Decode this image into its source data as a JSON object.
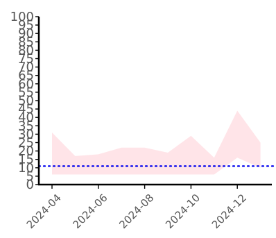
{
  "chart_data": {
    "type": "area",
    "title": "",
    "xlabel": "",
    "ylabel": "",
    "ylim": [
      0,
      100
    ],
    "y_ticks": [
      0,
      5,
      10,
      15,
      20,
      25,
      30,
      35,
      40,
      45,
      50,
      55,
      60,
      65,
      70,
      75,
      80,
      85,
      90,
      95,
      100
    ],
    "x_ticks": [
      "2024-04",
      "2024-06",
      "2024-08",
      "2024-10",
      "2024-12"
    ],
    "x": [
      "2024-04",
      "2024-05",
      "2024-06",
      "2024-07",
      "2024-08",
      "2024-09",
      "2024-10",
      "2024-11",
      "2024-12",
      "2025-01"
    ],
    "band": {
      "lower": [
        6,
        6,
        6,
        6,
        6,
        6,
        6,
        6,
        16,
        10
      ],
      "upper": [
        31,
        17,
        18,
        22,
        22,
        19,
        29,
        16,
        44,
        25
      ],
      "color": "#ffe4e8"
    },
    "reference_line": {
      "value": 11,
      "style": "dotted",
      "color": "#0000ee"
    },
    "grid": false,
    "legend": "none",
    "colors": {
      "axis": "#000000",
      "tick_label": "#555555"
    }
  }
}
